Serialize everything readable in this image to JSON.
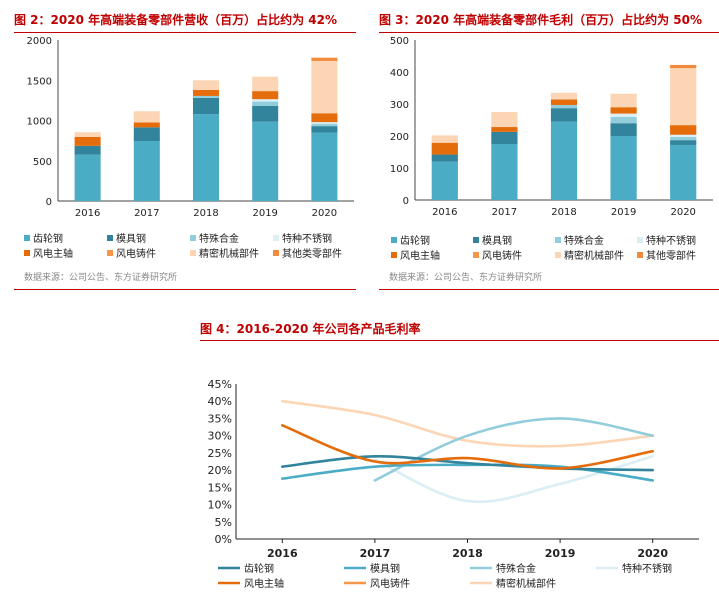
{
  "colors": {
    "gear_steel": "#4bacc6",
    "die_steel": "#31849b",
    "special_alloy": "#92cddc",
    "special_stainless": "#dbeef4",
    "wind_shaft": "#e46c0a",
    "wind_casting": "#f79646",
    "precision_parts": "#fcd5b5",
    "other_parts": "#f28a3c",
    "title_red": "#c00000"
  },
  "fig2": {
    "title": "图 2：2020 年高端装备零部件营收（百万）占比约为 42%",
    "source": "数据来源：公司公告、东方证券研究所",
    "legend": [
      "齿轮钢",
      "模具钢",
      "特殊合金",
      "特种不锈钢",
      "风电主轴",
      "风电铸件",
      "精密机械部件",
      "其他类零部件"
    ]
  },
  "fig3": {
    "title": "图 3：2020 年高端装备零部件毛利（百万）占比约为 50%",
    "source": "数据来源：公司公告、东方证券研究所",
    "legend": [
      "齿轮钢",
      "模具钢",
      "特殊合金",
      "特种不锈钢",
      "风电主轴",
      "风电铸件",
      "精密机械部件",
      "其他零部件"
    ]
  },
  "fig4": {
    "title": "图 4：2016-2020 年公司各产品毛利率",
    "legend": [
      "齿轮钢",
      "模具钢",
      "特殊合金",
      "特种不锈钢",
      "风电主轴",
      "风电铸件",
      "精密机械部件"
    ]
  },
  "chart_data": [
    {
      "type": "bar",
      "stacked": true,
      "categories": [
        "2016",
        "2017",
        "2018",
        "2019",
        "2020"
      ],
      "ylim": [
        0,
        2000
      ],
      "yticks": [
        0,
        500,
        1000,
        1500,
        2000
      ],
      "series": [
        {
          "name": "齿轮钢",
          "values": [
            575,
            745,
            1080,
            985,
            850
          ]
        },
        {
          "name": "模具钢",
          "values": [
            110,
            170,
            200,
            195,
            80
          ]
        },
        {
          "name": "特殊合金",
          "values": [
            0,
            0,
            25,
            55,
            30
          ]
        },
        {
          "name": "特种不锈钢",
          "values": [
            0,
            0,
            0,
            30,
            20
          ]
        },
        {
          "name": "风电主轴",
          "values": [
            110,
            60,
            75,
            100,
            110
          ]
        },
        {
          "name": "风电铸件",
          "values": [
            0,
            0,
            0,
            0,
            0
          ]
        },
        {
          "name": "精密机械部件",
          "values": [
            60,
            140,
            120,
            180,
            650
          ]
        },
        {
          "name": "其他类零部件",
          "values": [
            0,
            0,
            0,
            0,
            40
          ]
        }
      ]
    },
    {
      "type": "bar",
      "stacked": true,
      "categories": [
        "2016",
        "2017",
        "2018",
        "2019",
        "2020"
      ],
      "ylim": [
        0,
        500
      ],
      "yticks": [
        0,
        100,
        200,
        300,
        400,
        500
      ],
      "series": [
        {
          "name": "齿轮钢",
          "values": [
            120,
            175,
            245,
            200,
            172
          ]
        },
        {
          "name": "模具钢",
          "values": [
            22,
            38,
            42,
            40,
            15
          ]
        },
        {
          "name": "特殊合金",
          "values": [
            0,
            0,
            10,
            20,
            10
          ]
        },
        {
          "name": "特种不锈钢",
          "values": [
            0,
            0,
            0,
            10,
            7
          ]
        },
        {
          "name": "风电主轴",
          "values": [
            37,
            15,
            17,
            20,
            30
          ]
        },
        {
          "name": "风电铸件",
          "values": [
            0,
            0,
            0,
            0,
            0
          ]
        },
        {
          "name": "精密机械部件",
          "values": [
            23,
            47,
            21,
            42,
            178
          ]
        },
        {
          "name": "其他零部件",
          "values": [
            0,
            0,
            0,
            0,
            10
          ]
        }
      ]
    },
    {
      "type": "line",
      "categories": [
        "2016",
        "2017",
        "2018",
        "2019",
        "2020"
      ],
      "ylim": [
        0,
        45
      ],
      "yticks": [
        "0%",
        "5%",
        "10%",
        "15%",
        "20%",
        "25%",
        "30%",
        "35%",
        "40%",
        "45%"
      ],
      "series": [
        {
          "name": "齿轮钢",
          "values": [
            21,
            24,
            22,
            20.5,
            20
          ]
        },
        {
          "name": "模具钢",
          "values": [
            17.5,
            21,
            21.5,
            21,
            17
          ]
        },
        {
          "name": "特殊合金",
          "values": [
            null,
            17,
            30,
            35,
            30
          ]
        },
        {
          "name": "特种不锈钢",
          "values": [
            null,
            23,
            11,
            16,
            24
          ]
        },
        {
          "name": "风电主轴",
          "values": [
            33,
            22.5,
            23.5,
            20.5,
            25.5
          ]
        },
        {
          "name": "风电铸件",
          "values": [
            null,
            null,
            null,
            null,
            null
          ]
        },
        {
          "name": "精密机械部件",
          "values": [
            40,
            36,
            28.5,
            27,
            30
          ]
        }
      ]
    }
  ]
}
